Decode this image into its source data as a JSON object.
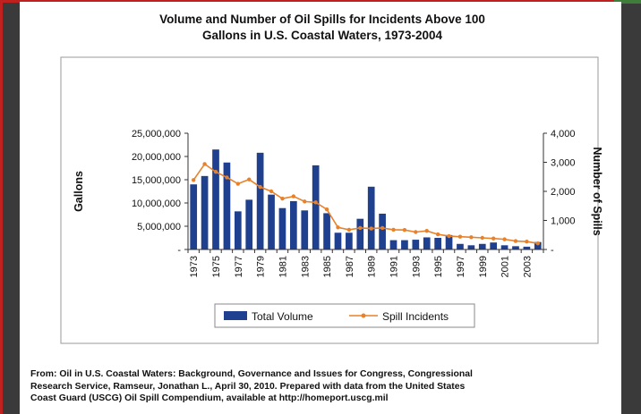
{
  "chart_data": {
    "type": "bar",
    "title_lines": [
      "Volume and Number of Oil Spills for Incidents Above 100",
      "Gallons in U.S. Coastal Waters, 1973-2004"
    ],
    "x": [
      1973,
      1974,
      1975,
      1976,
      1977,
      1978,
      1979,
      1980,
      1981,
      1982,
      1983,
      1984,
      1985,
      1986,
      1987,
      1988,
      1989,
      1990,
      1991,
      1992,
      1993,
      1994,
      1995,
      1996,
      1997,
      1998,
      1999,
      2000,
      2001,
      2002,
      2003,
      2004
    ],
    "x_tick_labels": [
      "1973",
      "1975",
      "1977",
      "1979",
      "1981",
      "1983",
      "1985",
      "1987",
      "1989",
      "1991",
      "1993",
      "1995",
      "1997",
      "1999",
      "2001",
      "2003"
    ],
    "ylabel": "Gallons",
    "y2label": "Number of Spills",
    "ylim": [
      0,
      25000000
    ],
    "y2lim": [
      0,
      4000
    ],
    "y_tick_labels": [
      "25,000,000",
      "20,000,000",
      "15,000,000",
      "10,000,000",
      "5,000,000",
      "-"
    ],
    "y2_tick_labels": [
      "4,000",
      "3,000",
      "2,000",
      "1,000",
      "-"
    ],
    "series": [
      {
        "name": "Total Volume",
        "kind": "bar",
        "axis": "left",
        "color": "#1f3f8f",
        "values": [
          14000000,
          15800000,
          21500000,
          18700000,
          8200000,
          10700000,
          20800000,
          11800000,
          8900000,
          10400000,
          8400000,
          18100000,
          7800000,
          3600000,
          3600000,
          6600000,
          13500000,
          7700000,
          2000000,
          2000000,
          2100000,
          2600000,
          2500000,
          3100000,
          1200000,
          900000,
          1200000,
          1500000,
          900000,
          700000,
          600000,
          1600000
        ]
      },
      {
        "name": "Spill Incidents",
        "kind": "line",
        "axis": "right",
        "color": "#e8822a",
        "values": [
          2390,
          2940,
          2670,
          2480,
          2260,
          2410,
          2150,
          2000,
          1750,
          1830,
          1650,
          1620,
          1380,
          760,
          680,
          740,
          720,
          740,
          680,
          670,
          600,
          640,
          520,
          460,
          440,
          420,
          400,
          380,
          350,
          290,
          270,
          210
        ]
      }
    ],
    "legend": {
      "position": "bottom",
      "items": [
        "Total Volume",
        "Spill Incidents"
      ]
    },
    "grid": false
  },
  "source_lines": [
    "From: Oil in U.S. Coastal Waters: Background, Governance and Issues for Congress, Congressional",
    "Research Service, Ramseur, Jonathan L., April 30, 2010. Prepared with data from the United States",
    "Coast Guard (USCG) Oil Spill Compendium, available at http://homeport.uscg.mil"
  ]
}
